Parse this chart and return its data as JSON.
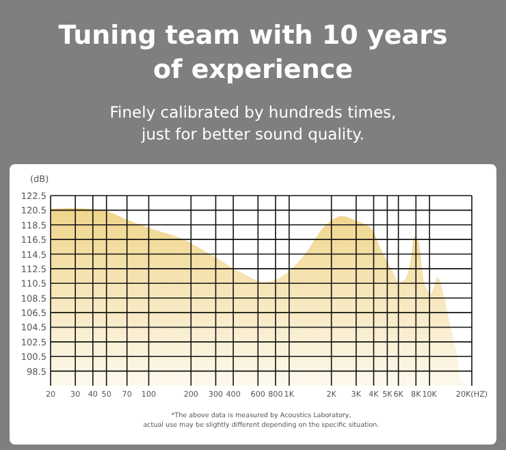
{
  "chart_data": {
    "type": "area",
    "title": "Tuning team with 10 years of experience",
    "subtitle": "Finely calibrated by hundreds times, just for better sound quality.",
    "ylabel": "(dB)",
    "annotations": [
      "*The above data is measured by Acoustics Laboratory,",
      "actual use may be slightly different depending on the specific situation."
    ],
    "log": "x",
    "grid": true,
    "xlim": [
      20,
      20000
    ],
    "xticks": [
      20,
      30,
      40,
      50,
      70,
      100,
      200,
      300,
      400,
      600,
      800,
      {
        "value": 1000,
        "label": "1K"
      },
      {
        "value": 2000,
        "label": "2K"
      },
      {
        "value": 3000,
        "label": "3K"
      },
      {
        "value": 4000,
        "label": "4K"
      },
      {
        "value": 5000,
        "label": "5K"
      },
      {
        "value": 6000,
        "label": "6K"
      },
      {
        "value": 8000,
        "label": "8K"
      },
      {
        "value": 10000,
        "label": "10K"
      },
      {
        "value": 20000,
        "label": "20K(HZ)"
      }
    ],
    "ylim": [
      96.5,
      122.5
    ],
    "yticks": [
      98.5,
      100.5,
      102.5,
      104.5,
      106.5,
      108.5,
      110.5,
      112.5,
      114.5,
      116.5,
      118.5,
      120.5,
      122.5
    ],
    "x": [
      20,
      28.6,
      49,
      70,
      103,
      172,
      295,
      462,
      660,
      828,
      1212,
      1898,
      2377,
      2972,
      3890,
      4450,
      5445,
      6100,
      6800,
      7300,
      7800,
      8340,
      9120,
      10200,
      11400,
      12800,
      13600,
      16000,
      16700,
      20000
    ],
    "series": [
      {
        "color": "#f0d58a",
        "values": [
          120.7,
          120.8,
          120.4,
          119.2,
          118.0,
          116.6,
          114.1,
          111.9,
          110.7,
          111.1,
          113.8,
          118.8,
          119.7,
          119.1,
          117.9,
          115.4,
          112.2,
          110.6,
          111.3,
          113.5,
          116.9,
          116.3,
          110.9,
          109.1,
          111.3,
          108.4,
          106.0,
          99.6,
          97.1,
          96.6
        ]
      }
    ]
  }
}
